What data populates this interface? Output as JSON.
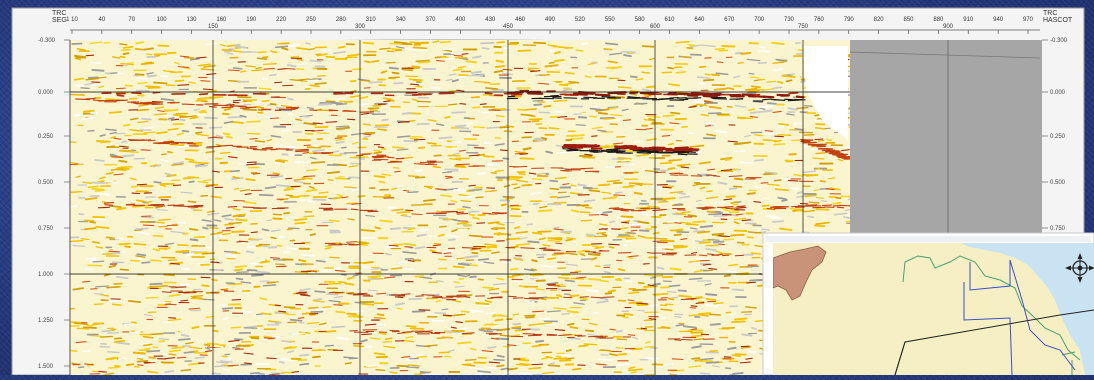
{
  "section": {
    "left_trace_label": [
      "TRC",
      "SEG"
    ],
    "right_trace_label": [
      "TRC",
      "HASCOT"
    ],
    "top_tick_labels": [
      "1 10",
      "40",
      "70",
      "100",
      "130",
      "160",
      "190",
      "220",
      "250",
      "280",
      "310",
      "340",
      "370",
      "400",
      "430",
      "460",
      "490",
      "520",
      "550",
      "580",
      "610",
      "640",
      "670",
      "700",
      "730",
      "760",
      "790",
      "820",
      "850",
      "880",
      "910",
      "940",
      "970"
    ],
    "secondary_tick_labels": [
      "150",
      "300",
      "450",
      "600",
      "750",
      "900"
    ],
    "left_time_labels": [
      "-0.300",
      "0.000",
      "0.250",
      "0.500",
      "0.750",
      "1.000",
      "1.250",
      "1.500"
    ],
    "right_time_labels": [
      "-0.300",
      "0.000",
      "0.250",
      "0.500",
      "0.750"
    ]
  },
  "inset_map": {
    "compass": "north-arrow-icon",
    "colors": {
      "land": "#f6efc4",
      "water": "#c9e3f2",
      "outcrop": "#c89378",
      "boundary_blue": "#3b4fc8",
      "boundary_green": "#4aa070",
      "road": "#222222"
    }
  }
}
